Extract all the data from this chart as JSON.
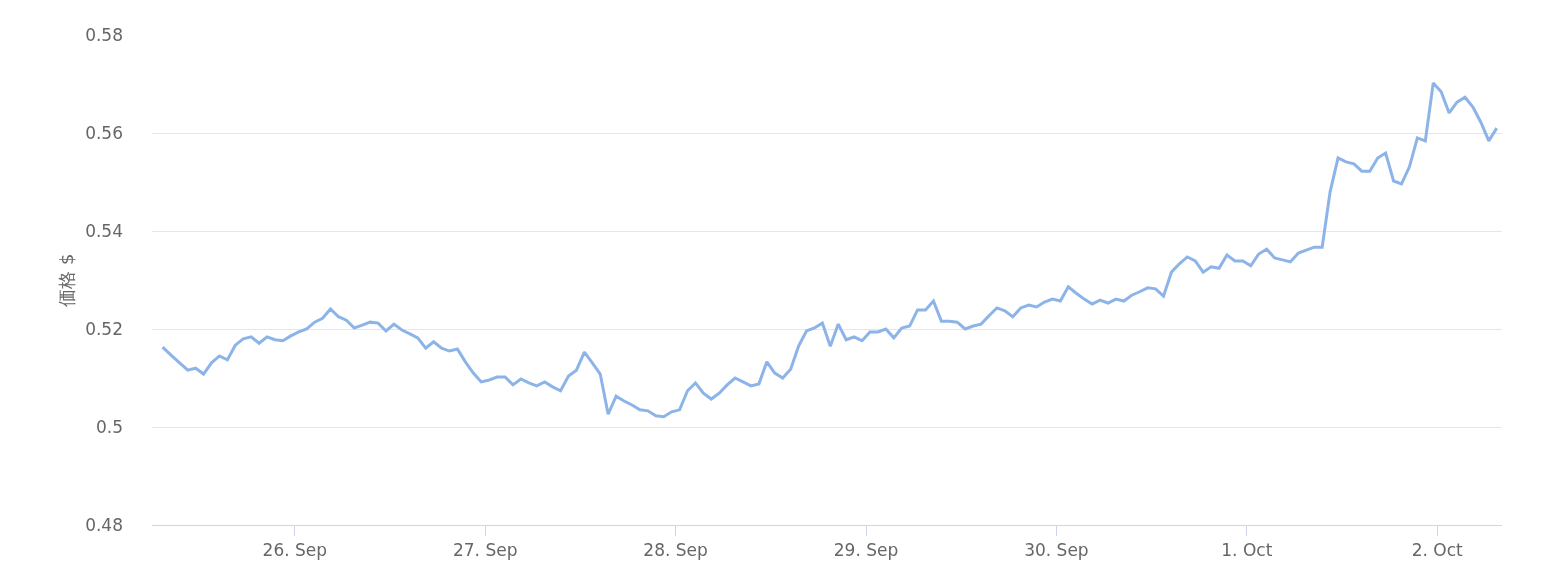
{
  "chart_data": {
    "type": "line",
    "ylabel": "価格 $",
    "xlim": [
      "--09-25T06:00",
      "--10-02T08:10"
    ],
    "xticks": [
      {
        "value": "--09-26",
        "label": "26. Sep"
      },
      {
        "value": "--09-27",
        "label": "27. Sep"
      },
      {
        "value": "--09-28",
        "label": "28. Sep"
      },
      {
        "value": "--09-29",
        "label": "29. Sep"
      },
      {
        "value": "--09-30",
        "label": "30. Sep"
      },
      {
        "value": "--10-01",
        "label": "1. Oct"
      },
      {
        "value": "--10-02",
        "label": "2. Oct"
      }
    ],
    "ylim": [
      0.48,
      0.58
    ],
    "yticks": [
      0.48,
      0.5,
      0.52,
      0.54,
      0.56,
      0.58
    ],
    "grid": "y",
    "x": [
      "--09-25T07:20",
      "--09-25T08:30",
      "--09-25T10:30",
      "--09-25T11:30",
      "--09-25T12:30",
      "--09-25T13:30",
      "--09-25T14:30",
      "--09-25T15:30",
      "--09-25T16:30",
      "--09-25T17:30",
      "--09-25T18:30",
      "--09-25T19:30",
      "--09-25T20:30",
      "--09-25T21:30",
      "--09-25T22:30",
      "--09-25T23:30",
      "--09-26T00:30",
      "--09-26T01:30",
      "--09-26T02:30",
      "--09-26T03:30",
      "--09-26T04:30",
      "--09-26T05:30",
      "--09-26T06:30",
      "--09-26T07:30",
      "--09-26T08:30",
      "--09-26T09:30",
      "--09-26T10:30",
      "--09-26T11:30",
      "--09-26T12:30",
      "--09-26T13:30",
      "--09-26T14:30",
      "--09-26T15:30",
      "--09-26T16:30",
      "--09-26T17:30",
      "--09-26T18:30",
      "--09-26T19:30",
      "--09-26T20:30",
      "--09-26T21:30",
      "--09-26T22:30",
      "--09-26T23:30",
      "--09-27T00:30",
      "--09-27T01:30",
      "--09-27T02:30",
      "--09-27T03:30",
      "--09-27T04:30",
      "--09-27T05:30",
      "--09-27T06:30",
      "--09-27T07:30",
      "--09-27T08:30",
      "--09-27T09:30",
      "--09-27T10:30",
      "--09-27T11:30",
      "--09-27T12:30",
      "--09-27T13:30",
      "--09-27T14:30",
      "--09-27T15:30",
      "--09-27T16:30",
      "--09-27T17:30",
      "--09-27T18:30",
      "--09-27T19:30",
      "--09-27T20:30",
      "--09-27T21:30",
      "--09-27T22:30",
      "--09-27T23:30",
      "--09-28T00:30",
      "--09-28T01:30",
      "--09-28T02:30",
      "--09-28T03:30",
      "--09-28T04:30",
      "--09-28T05:30",
      "--09-28T06:30",
      "--09-28T07:30",
      "--09-28T08:30",
      "--09-28T09:30",
      "--09-28T10:30",
      "--09-28T11:30",
      "--09-28T12:30",
      "--09-28T13:30",
      "--09-28T14:30",
      "--09-28T15:30",
      "--09-28T16:30",
      "--09-28T17:30",
      "--09-28T18:30",
      "--09-28T19:30",
      "--09-28T20:30",
      "--09-28T21:30",
      "--09-28T22:30",
      "--09-28T23:30",
      "--09-29T00:30",
      "--09-29T01:30",
      "--09-29T02:30",
      "--09-29T03:30",
      "--09-29T04:30",
      "--09-29T05:30",
      "--09-29T06:30",
      "--09-29T07:30",
      "--09-29T08:30",
      "--09-29T09:30",
      "--09-29T10:30",
      "--09-29T11:30",
      "--09-29T12:30",
      "--09-29T13:30",
      "--09-29T14:30",
      "--09-29T15:30",
      "--09-29T16:30",
      "--09-29T17:30",
      "--09-29T18:30",
      "--09-29T19:30",
      "--09-29T20:30",
      "--09-29T21:30",
      "--09-29T22:30",
      "--09-29T23:30",
      "--09-30T00:30",
      "--09-30T01:30",
      "--09-30T02:30",
      "--09-30T03:30",
      "--09-30T04:30",
      "--09-30T05:30",
      "--09-30T06:30",
      "--09-30T07:30",
      "--09-30T08:30",
      "--09-30T09:30",
      "--09-30T10:30",
      "--09-30T11:30",
      "--09-30T12:30",
      "--09-30T13:30",
      "--09-30T14:30",
      "--09-30T15:30",
      "--09-30T16:30",
      "--09-30T17:30",
      "--09-30T18:30",
      "--09-30T19:30",
      "--09-30T20:30",
      "--09-30T21:30",
      "--09-30T22:30",
      "--09-30T23:30",
      "--10-01T00:30",
      "--10-01T01:30",
      "--10-01T02:30",
      "--10-01T03:30",
      "--10-01T04:30",
      "--10-01T05:30",
      "--10-01T06:30",
      "--10-01T07:30",
      "--10-01T08:30",
      "--10-01T09:30",
      "--10-01T10:30",
      "--10-01T11:30",
      "--10-01T12:30",
      "--10-01T13:30",
      "--10-01T14:30",
      "--10-01T15:30",
      "--10-01T16:30",
      "--10-01T17:30",
      "--10-01T18:30",
      "--10-01T19:30",
      "--10-01T20:30",
      "--10-01T21:30",
      "--10-01T22:30",
      "--10-01T23:30",
      "--10-02T00:30",
      "--10-02T01:30",
      "--10-02T02:30",
      "--10-02T03:30",
      "--10-02T04:30",
      "--10-02T05:30",
      "--10-02T06:30",
      "--10-02T07:30"
    ],
    "series": [
      {
        "color": "#8cb4e8",
        "values": [
          0.5163,
          0.5145,
          0.5116,
          0.512,
          0.5108,
          0.5131,
          0.5145,
          0.5137,
          0.5167,
          0.518,
          0.5184,
          0.5171,
          0.5184,
          0.5178,
          0.5176,
          0.5186,
          0.5194,
          0.52,
          0.5214,
          0.5222,
          0.5241,
          0.5225,
          0.5218,
          0.5202,
          0.5208,
          0.5214,
          0.5212,
          0.5196,
          0.521,
          0.5198,
          0.519,
          0.5182,
          0.5161,
          0.5174,
          0.5161,
          0.5155,
          0.5159,
          0.5133,
          0.511,
          0.5092,
          0.5096,
          0.5102,
          0.5102,
          0.5086,
          0.5098,
          0.509,
          0.5084,
          0.5092,
          0.5082,
          0.5074,
          0.5104,
          0.5116,
          0.5153,
          0.5131,
          0.5108,
          0.5026,
          0.5063,
          0.5053,
          0.5045,
          0.5035,
          0.5033,
          0.5023,
          0.5021,
          0.5031,
          0.5035,
          0.5074,
          0.509,
          0.5069,
          0.5057,
          0.5069,
          0.5086,
          0.51,
          0.5092,
          0.5084,
          0.5088,
          0.5133,
          0.511,
          0.51,
          0.5118,
          0.5165,
          0.5196,
          0.5202,
          0.5212,
          0.5165,
          0.521,
          0.5178,
          0.5184,
          0.5176,
          0.5194,
          0.5194,
          0.52,
          0.5182,
          0.5202,
          0.5206,
          0.5239,
          0.5239,
          0.5257,
          0.5216,
          0.5216,
          0.5214,
          0.52,
          0.5206,
          0.521,
          0.5227,
          0.5243,
          0.5237,
          0.5225,
          0.5243,
          0.5249,
          0.5245,
          0.5255,
          0.5261,
          0.5257,
          0.5286,
          0.5273,
          0.5261,
          0.5251,
          0.5259,
          0.5253,
          0.5261,
          0.5257,
          0.5269,
          0.5276,
          0.5284,
          0.5282,
          0.5267,
          0.5316,
          0.5333,
          0.5347,
          0.5339,
          0.5316,
          0.5327,
          0.5324,
          0.5351,
          0.5339,
          0.5339,
          0.5329,
          0.5353,
          0.5363,
          0.5345,
          0.5341,
          0.5337,
          0.5355,
          0.5361,
          0.5367,
          0.5367,
          0.548,
          0.5549,
          0.5541,
          0.5537,
          0.5522,
          0.5522,
          0.5549,
          0.5559,
          0.5502,
          0.5496,
          0.5531,
          0.559,
          0.5584,
          0.5702,
          0.5684,
          0.5641,
          0.5663,
          0.5673,
          0.5653,
          0.5622,
          0.5584,
          0.561
        ]
      }
    ]
  }
}
